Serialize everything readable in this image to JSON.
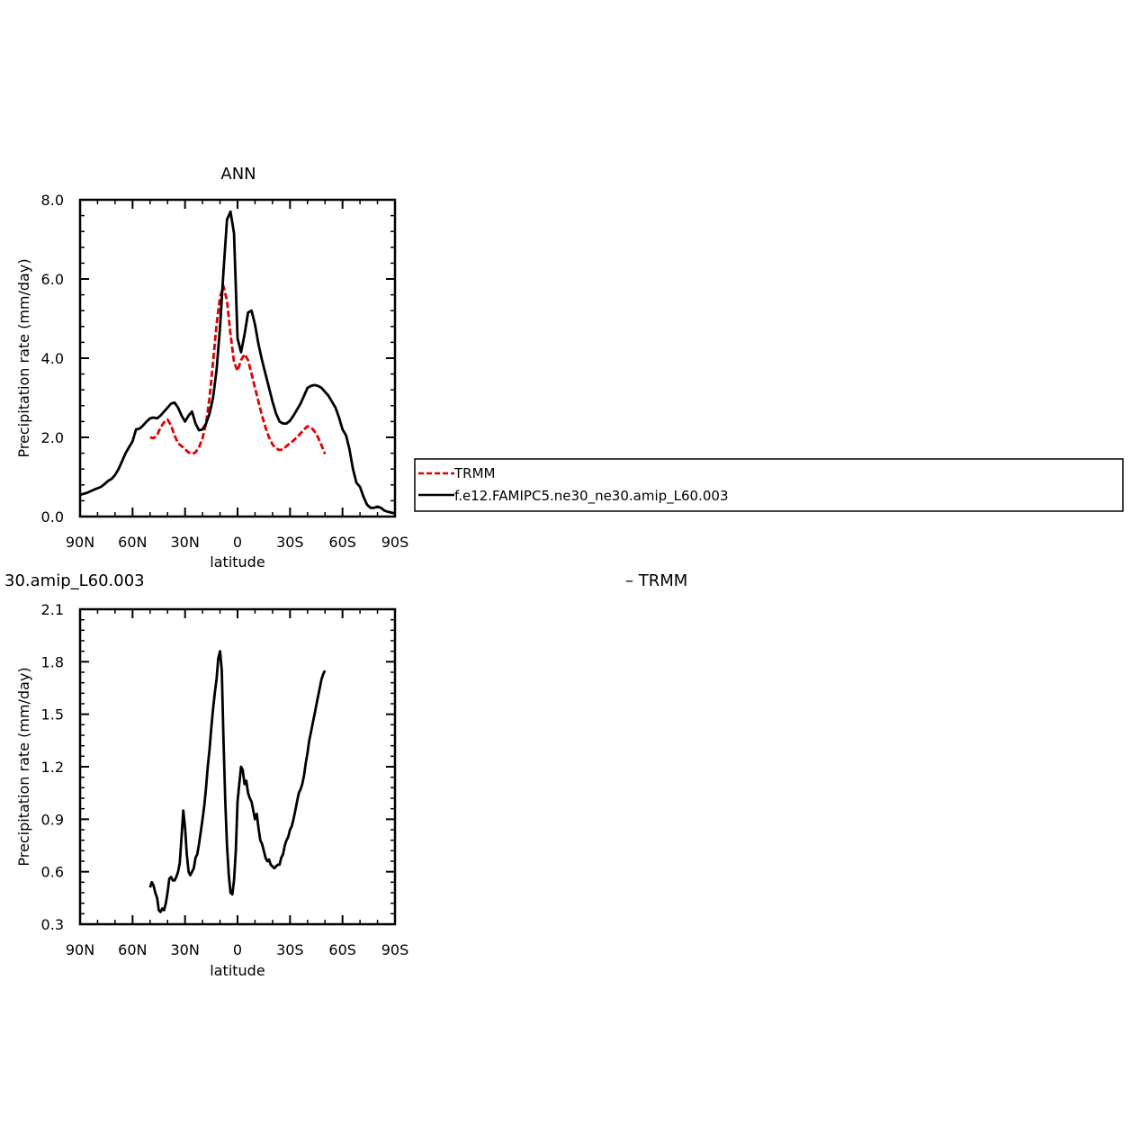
{
  "chart_data": [
    {
      "type": "line",
      "title": "ANN",
      "xlabel": "latitude",
      "ylabel": "Precipitation rate (mm/day)",
      "xlim": [
        90,
        -90
      ],
      "ylim": [
        0,
        8
      ],
      "x_ticks": [
        90,
        60,
        30,
        0,
        -30,
        -60,
        -90
      ],
      "x_tick_labels": [
        "90N",
        "60N",
        "30N",
        "0",
        "30S",
        "60S",
        "90S"
      ],
      "y_ticks": [
        0,
        2,
        4,
        6,
        8
      ],
      "y_tick_labels": [
        "0.0",
        "2.0",
        "4.0",
        "6.0",
        "8.0"
      ],
      "legend": "right, outside plot",
      "series": [
        {
          "name": "TRMM",
          "color": "#e00000",
          "style": "dashed",
          "x": [
            50,
            48,
            46,
            44,
            42,
            40,
            38,
            36,
            34,
            32,
            30,
            28,
            26,
            24,
            22,
            20,
            18,
            16,
            14,
            12,
            10,
            8,
            6,
            4,
            2,
            0,
            -2,
            -4,
            -6,
            -8,
            -10,
            -12,
            -14,
            -16,
            -18,
            -20,
            -22,
            -24,
            -26,
            -28,
            -30,
            -32,
            -34,
            -36,
            -38,
            -40,
            -42,
            -44,
            -46,
            -48,
            -50
          ],
          "y": [
            2.0,
            1.98,
            2.05,
            2.25,
            2.38,
            2.45,
            2.3,
            2.05,
            1.85,
            1.78,
            1.7,
            1.62,
            1.58,
            1.62,
            1.75,
            1.98,
            2.35,
            3.0,
            3.9,
            4.85,
            5.55,
            5.82,
            5.45,
            4.6,
            3.9,
            3.68,
            3.95,
            4.1,
            3.95,
            3.6,
            3.25,
            2.9,
            2.55,
            2.25,
            2.0,
            1.82,
            1.72,
            1.68,
            1.7,
            1.78,
            1.85,
            1.92,
            2.0,
            2.1,
            2.2,
            2.28,
            2.25,
            2.15,
            2.0,
            1.8,
            1.58
          ]
        },
        {
          "name": "f.e12.FAMIPC5.ne30_ne30.amip_L60.003",
          "color": "#000000",
          "style": "solid",
          "x": [
            90,
            86,
            82,
            78,
            76,
            74,
            72,
            70,
            68,
            66,
            64,
            62,
            60,
            58,
            56,
            54,
            52,
            50,
            48,
            46,
            44,
            42,
            40,
            38,
            36,
            34,
            32,
            30,
            28,
            26,
            24,
            22,
            20,
            18,
            16,
            14,
            12,
            10,
            8,
            6,
            4,
            2,
            0,
            -2,
            -4,
            -6,
            -8,
            -10,
            -12,
            -14,
            -16,
            -18,
            -20,
            -22,
            -24,
            -26,
            -28,
            -30,
            -32,
            -34,
            -36,
            -38,
            -40,
            -42,
            -44,
            -46,
            -48,
            -50,
            -52,
            -54,
            -56,
            -58,
            -60,
            -62,
            -64,
            -66,
            -68,
            -70,
            -72,
            -74,
            -76,
            -78,
            -80,
            -82,
            -84,
            -86,
            -88,
            -90
          ],
          "y": [
            0.55,
            0.6,
            0.68,
            0.75,
            0.82,
            0.9,
            0.95,
            1.05,
            1.2,
            1.4,
            1.6,
            1.75,
            1.9,
            2.2,
            2.22,
            2.3,
            2.4,
            2.48,
            2.5,
            2.48,
            2.55,
            2.65,
            2.75,
            2.85,
            2.88,
            2.75,
            2.55,
            2.4,
            2.55,
            2.65,
            2.35,
            2.18,
            2.2,
            2.35,
            2.6,
            3.0,
            3.7,
            4.8,
            6.2,
            7.5,
            7.7,
            7.15,
            4.5,
            4.15,
            4.6,
            5.15,
            5.2,
            4.85,
            4.35,
            3.95,
            3.6,
            3.25,
            2.9,
            2.6,
            2.4,
            2.35,
            2.35,
            2.42,
            2.55,
            2.7,
            2.85,
            3.05,
            3.25,
            3.3,
            3.32,
            3.3,
            3.25,
            3.15,
            3.05,
            2.9,
            2.75,
            2.5,
            2.2,
            2.05,
            1.7,
            1.2,
            0.85,
            0.75,
            0.5,
            0.3,
            0.22,
            0.22,
            0.25,
            0.22,
            0.15,
            0.12,
            0.1,
            0.08
          ]
        }
      ]
    },
    {
      "type": "line",
      "title_left": "30.amip_L60.003",
      "title_right": "– TRMM",
      "xlabel": "latitude",
      "ylabel": "Precipitation rate (mm/day)",
      "xlim": [
        90,
        -90
      ],
      "ylim": [
        0.3,
        2.1
      ],
      "x_ticks": [
        90,
        60,
        30,
        0,
        -30,
        -60,
        -90
      ],
      "x_tick_labels": [
        "90N",
        "60N",
        "30N",
        "0",
        "30S",
        "60S",
        "90S"
      ],
      "y_ticks": [
        0.3,
        0.6,
        0.9,
        1.2,
        1.5,
        1.8,
        2.1
      ],
      "y_tick_labels": [
        "0.3",
        "0.6",
        "0.9",
        "1.2",
        "1.5",
        "1.8",
        "2.1"
      ],
      "series": [
        {
          "color": "#000000",
          "style": "solid",
          "x": [
            50,
            49,
            48,
            47,
            46,
            45,
            44,
            43,
            42,
            41,
            40,
            39,
            38,
            37,
            36,
            35,
            34,
            33,
            32,
            31,
            30,
            29,
            28,
            27,
            26,
            25,
            24,
            23,
            22,
            21,
            20,
            19,
            18,
            17,
            16,
            15,
            14,
            13,
            12,
            11,
            10,
            9,
            8,
            7,
            6,
            5,
            4,
            3,
            2,
            1,
            0,
            -1,
            -2,
            -3,
            -4,
            -5,
            -6,
            -7,
            -8,
            -9,
            -10,
            -11,
            -12,
            -13,
            -14,
            -15,
            -16,
            -17,
            -18,
            -19,
            -20,
            -21,
            -22,
            -23,
            -24,
            -25,
            -26,
            -27,
            -28,
            -29,
            -30,
            -31,
            -32,
            -33,
            -34,
            -35,
            -36,
            -37,
            -38,
            -39,
            -40,
            -41,
            -42,
            -43,
            -44,
            -45,
            -46,
            -47,
            -48,
            -49,
            -50
          ],
          "y": [
            0.51,
            0.54,
            0.52,
            0.48,
            0.45,
            0.38,
            0.37,
            0.39,
            0.38,
            0.42,
            0.48,
            0.56,
            0.57,
            0.55,
            0.55,
            0.57,
            0.6,
            0.65,
            0.8,
            0.95,
            0.85,
            0.7,
            0.6,
            0.58,
            0.6,
            0.62,
            0.68,
            0.7,
            0.76,
            0.83,
            0.9,
            0.98,
            1.08,
            1.2,
            1.3,
            1.42,
            1.53,
            1.62,
            1.7,
            1.82,
            1.86,
            1.75,
            1.35,
            1.0,
            0.75,
            0.58,
            0.48,
            0.47,
            0.55,
            0.72,
            1.0,
            1.1,
            1.2,
            1.18,
            1.1,
            1.12,
            1.05,
            1.02,
            1.0,
            0.95,
            0.9,
            0.93,
            0.85,
            0.78,
            0.76,
            0.72,
            0.68,
            0.66,
            0.67,
            0.64,
            0.63,
            0.62,
            0.63,
            0.64,
            0.64,
            0.68,
            0.7,
            0.75,
            0.78,
            0.8,
            0.84,
            0.86,
            0.9,
            0.95,
            1.0,
            1.05,
            1.07,
            1.1,
            1.15,
            1.22,
            1.28,
            1.35,
            1.4,
            1.45,
            1.5,
            1.55,
            1.6,
            1.65,
            1.7,
            1.73,
            1.75
          ]
        }
      ]
    }
  ]
}
